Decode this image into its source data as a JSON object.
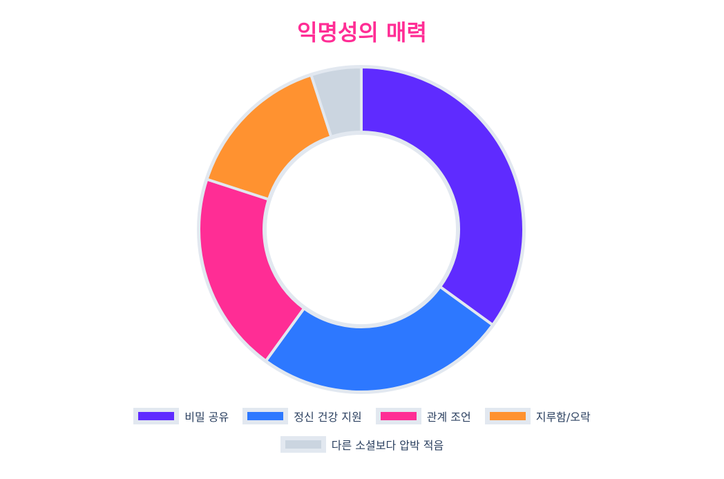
{
  "title": "익명성의 매력",
  "chart_data": {
    "type": "pie",
    "hole": 0.6,
    "title": "익명성의 매력",
    "categories": [
      "비밀 공유",
      "정신 건강 지원",
      "관계 조언",
      "지루함/오락",
      "다른 소셜보다 압박 적음"
    ],
    "values": [
      35,
      25,
      20,
      15,
      5
    ],
    "colors": [
      "#5f2bff",
      "#2d78ff",
      "#ff2d95",
      "#ff9230",
      "#cbd5e0"
    ],
    "border_color": "#e2e8f0",
    "direction": "clockwise",
    "rotation_start": "12 o'clock",
    "legend_position": "bottom"
  },
  "legend": {
    "items": [
      {
        "label": "비밀 공유",
        "color": "#5f2bff"
      },
      {
        "label": "정신 건강 지원",
        "color": "#2d78ff"
      },
      {
        "label": "관계 조언",
        "color": "#ff2d95"
      },
      {
        "label": "지루함/오락",
        "color": "#ff9230"
      },
      {
        "label": "다른 소셜보다 압박 적음",
        "color": "#cbd5e0"
      }
    ]
  }
}
